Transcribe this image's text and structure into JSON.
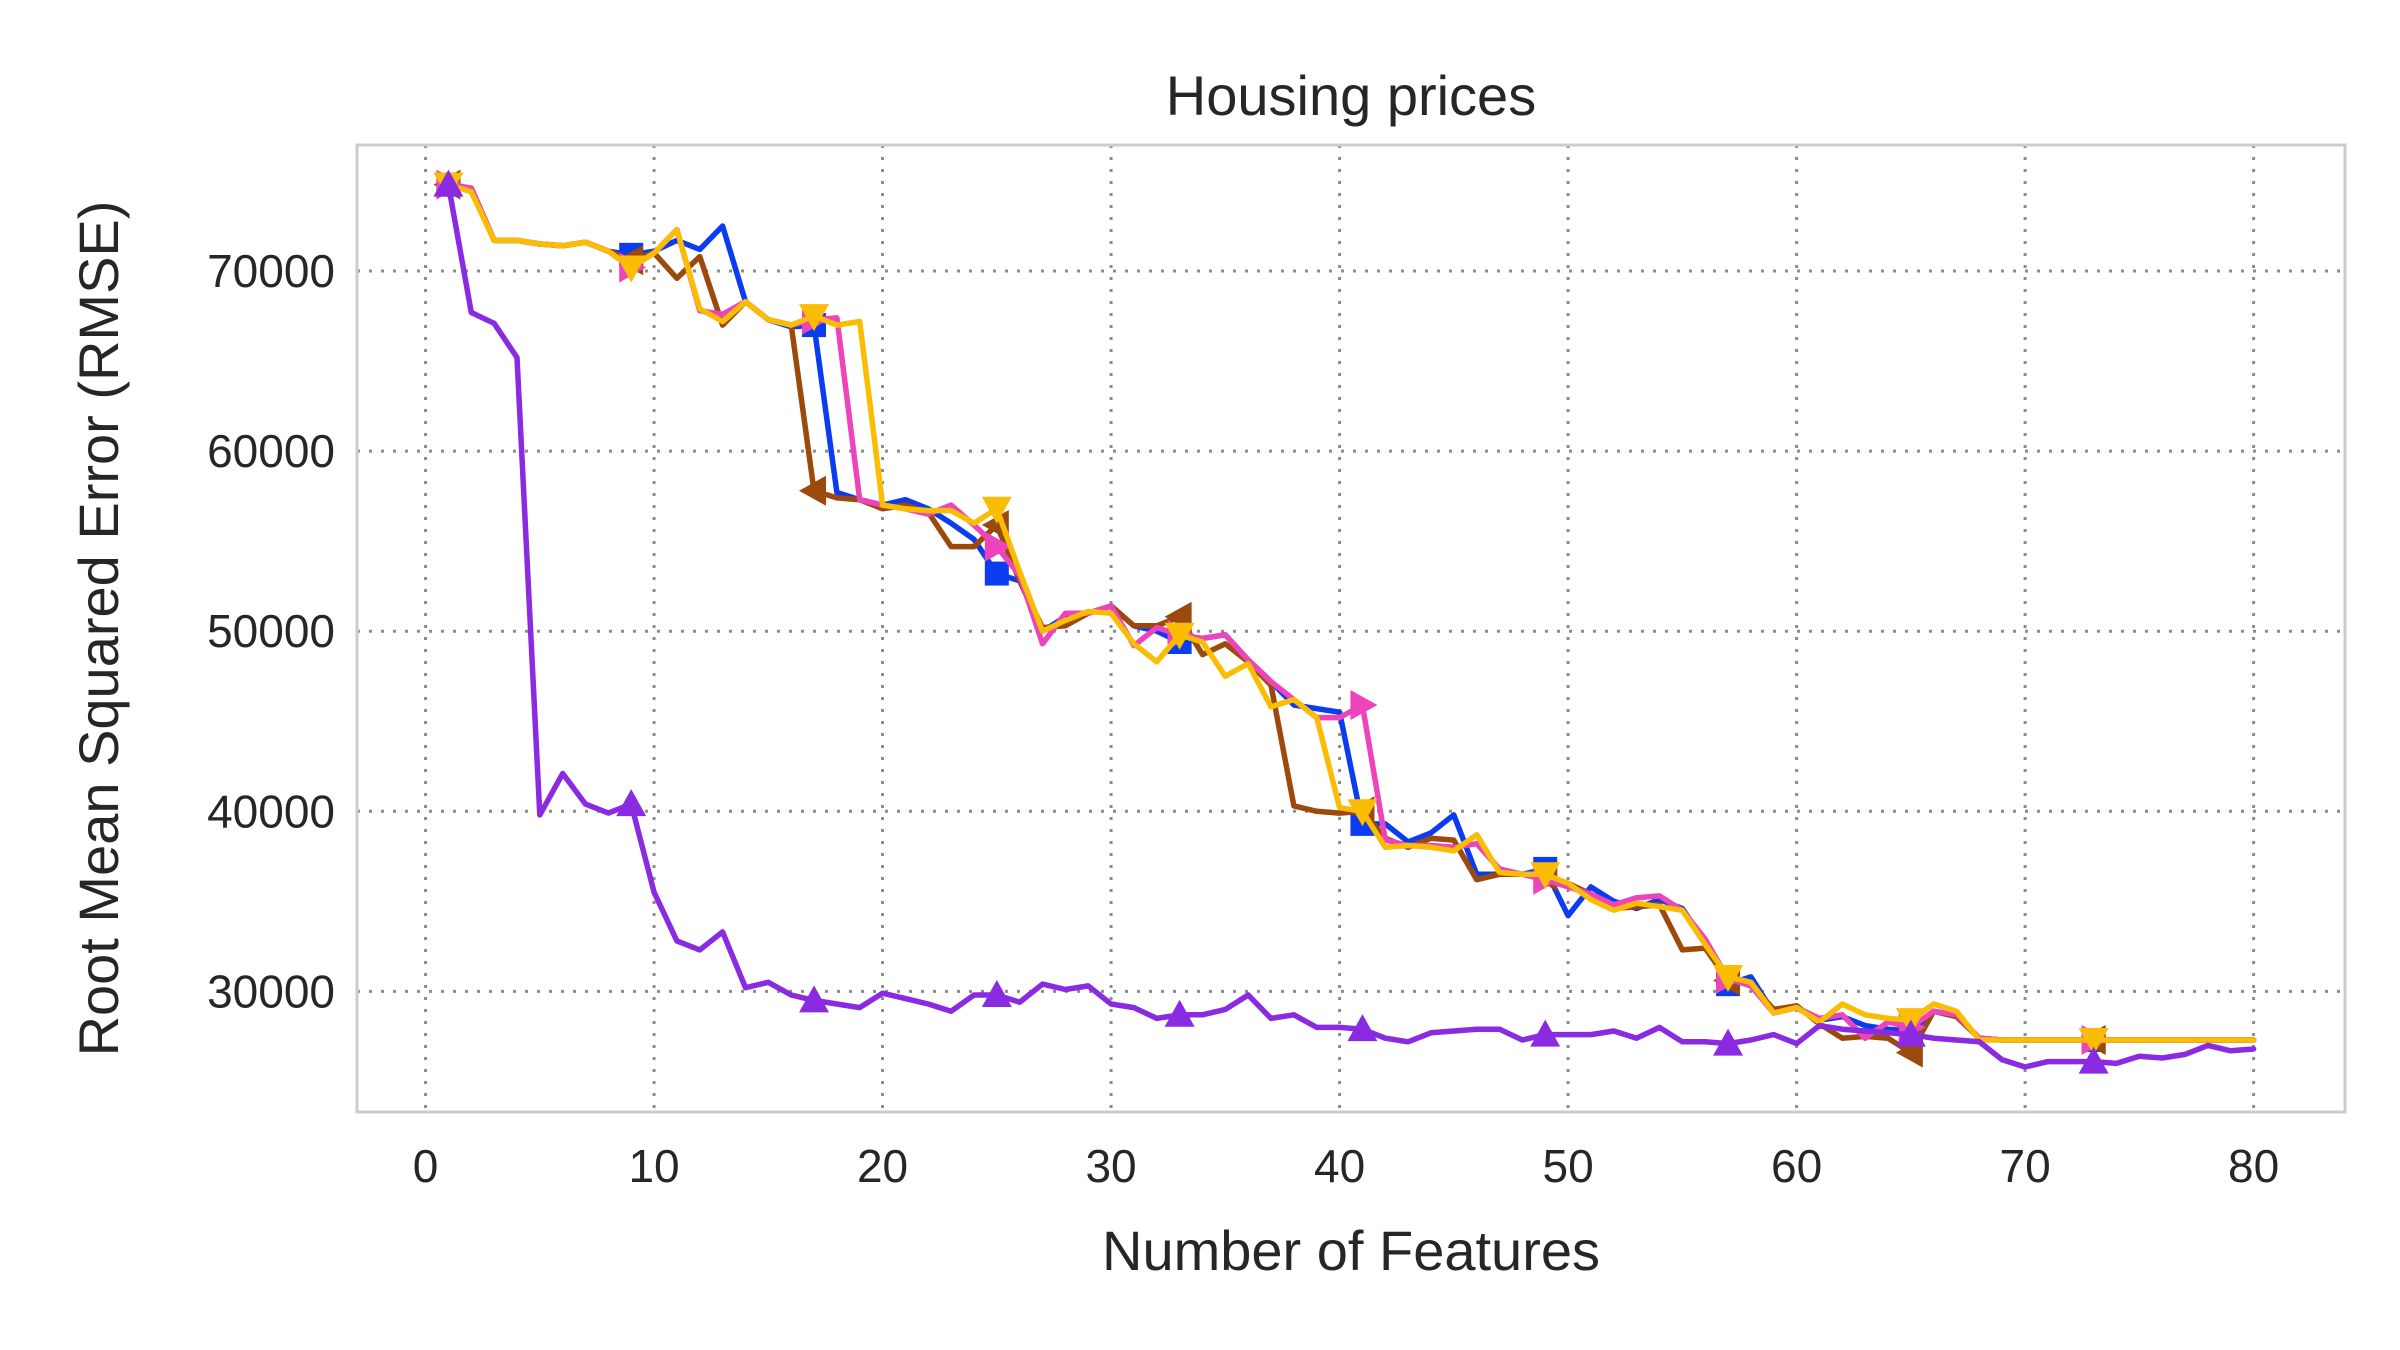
{
  "chart_data": {
    "type": "line",
    "title": "Housing prices",
    "xlabel": "Number of Features",
    "ylabel": "Root Mean Squared Error (RMSE)",
    "xlim": [
      -3,
      84
    ],
    "ylim": [
      23300,
      77000
    ],
    "xticks": [
      0,
      10,
      20,
      30,
      40,
      50,
      60,
      70,
      80
    ],
    "yticks": [
      30000,
      40000,
      50000,
      60000,
      70000
    ],
    "grid": true,
    "legend": "none",
    "series": [
      {
        "color": "#0b3cf0",
        "marker": "square",
        "x": [
          1,
          2,
          3,
          4,
          5,
          6,
          7,
          8,
          9,
          10,
          11,
          12,
          13,
          14,
          15,
          16,
          17,
          18,
          19,
          20,
          21,
          22,
          23,
          24,
          25,
          26,
          27,
          28,
          29,
          30,
          31,
          32,
          33,
          34,
          35,
          36,
          37,
          38,
          39,
          40,
          41,
          42,
          43,
          44,
          45,
          46,
          47,
          48,
          49,
          50,
          51,
          52,
          53,
          54,
          55,
          56,
          57,
          58,
          59,
          60,
          61,
          62,
          63,
          64,
          65,
          66,
          67,
          68,
          69,
          70,
          71,
          72,
          73,
          74,
          75,
          76,
          77,
          78,
          79,
          80
        ],
        "y": [
          74800,
          74600,
          71700,
          71700,
          71500,
          71400,
          71600,
          71100,
          70900,
          71100,
          71700,
          71200,
          72500,
          68300,
          67300,
          66900,
          67000,
          57700,
          57300,
          57000,
          57300,
          56800,
          56000,
          55100,
          53200,
          52800,
          50000,
          50800,
          51000,
          51400,
          50300,
          50000,
          49400,
          49600,
          49800,
          48400,
          47200,
          45900,
          45700,
          45500,
          39300,
          39300,
          38300,
          38800,
          39800,
          36500,
          36500,
          36500,
          36800,
          34200,
          35800,
          35000,
          34600,
          35100,
          34600,
          32700,
          30400,
          30800,
          28800,
          29100,
          28400,
          28600,
          28100,
          27900,
          27800,
          28900,
          28600,
          27400,
          27300,
          27300,
          27300,
          27300,
          27300,
          27300,
          27300,
          27300,
          27300,
          27300,
          27300,
          27300
        ],
        "marker_x": [
          1,
          9,
          17,
          25,
          33,
          41,
          49,
          57,
          65,
          73
        ]
      },
      {
        "color": "#9c4a0c",
        "marker": "triangle-left",
        "x": [
          1,
          2,
          3,
          4,
          5,
          6,
          7,
          8,
          9,
          10,
          11,
          12,
          13,
          14,
          15,
          16,
          17,
          18,
          19,
          20,
          21,
          22,
          23,
          24,
          25,
          26,
          27,
          28,
          29,
          30,
          31,
          32,
          33,
          34,
          35,
          36,
          37,
          38,
          39,
          40,
          41,
          42,
          43,
          44,
          45,
          46,
          47,
          48,
          49,
          50,
          51,
          52,
          53,
          54,
          55,
          56,
          57,
          58,
          59,
          60,
          61,
          62,
          63,
          64,
          65,
          66,
          67,
          68,
          69,
          70,
          71,
          72,
          73,
          74,
          75,
          76,
          77,
          78,
          79,
          80
        ],
        "y": [
          74800,
          74600,
          71700,
          71700,
          71500,
          71400,
          71600,
          71100,
          70600,
          71000,
          69600,
          70800,
          67000,
          68300,
          67300,
          67000,
          57800,
          57400,
          57300,
          56800,
          57000,
          56600,
          54700,
          54700,
          55900,
          52800,
          50200,
          50300,
          51000,
          51400,
          50300,
          50300,
          50800,
          48700,
          49300,
          48300,
          47000,
          40300,
          40000,
          39900,
          40000,
          38500,
          38000,
          38500,
          38400,
          36200,
          36500,
          36500,
          36400,
          36000,
          35400,
          34600,
          34700,
          34800,
          32300,
          32400,
          30600,
          30400,
          29000,
          29200,
          28200,
          27400,
          27500,
          27400,
          26600,
          28900,
          28600,
          27400,
          27300,
          27300,
          27300,
          27300,
          27300,
          27300,
          27300,
          27300,
          27300,
          27300,
          27300,
          27300
        ],
        "marker_x": [
          1,
          9,
          17,
          25,
          33,
          41,
          49,
          57,
          65,
          73
        ]
      },
      {
        "color": "#ee44bb",
        "marker": "triangle-right",
        "x": [
          1,
          2,
          3,
          4,
          5,
          6,
          7,
          8,
          9,
          10,
          11,
          12,
          13,
          14,
          15,
          16,
          17,
          18,
          19,
          20,
          21,
          22,
          23,
          24,
          25,
          26,
          27,
          28,
          29,
          30,
          31,
          32,
          33,
          34,
          35,
          36,
          37,
          38,
          39,
          40,
          41,
          42,
          43,
          44,
          45,
          46,
          47,
          48,
          49,
          50,
          51,
          52,
          53,
          54,
          55,
          56,
          57,
          58,
          59,
          60,
          61,
          62,
          63,
          64,
          65,
          66,
          67,
          68,
          69,
          70,
          71,
          72,
          73,
          74,
          75,
          76,
          77,
          78,
          79,
          80
        ],
        "y": [
          74800,
          74600,
          71700,
          71700,
          71500,
          71400,
          71600,
          71100,
          70200,
          71000,
          72300,
          67800,
          67600,
          68300,
          67300,
          67000,
          67300,
          67400,
          57300,
          57000,
          56800,
          56500,
          57000,
          55900,
          54700,
          53100,
          49300,
          51000,
          51000,
          51400,
          49200,
          50200,
          49800,
          49600,
          49800,
          48400,
          47200,
          46200,
          45200,
          45200,
          45900,
          38400,
          38100,
          38100,
          38000,
          38200,
          36800,
          36500,
          36200,
          35800,
          35400,
          34800,
          35200,
          35300,
          34500,
          32900,
          30700,
          30300,
          28800,
          29100,
          28500,
          28700,
          27400,
          28300,
          28000,
          28900,
          28700,
          27400,
          27300,
          27300,
          27300,
          27300,
          27300,
          27300,
          27300,
          27300,
          27300,
          27300,
          27300,
          27300
        ],
        "marker_x": [
          1,
          9,
          17,
          25,
          33,
          41,
          49,
          57,
          65,
          73
        ]
      },
      {
        "color": "#fbbc04",
        "marker": "triangle-down",
        "x": [
          1,
          2,
          3,
          4,
          5,
          6,
          7,
          8,
          9,
          10,
          11,
          12,
          13,
          14,
          15,
          16,
          17,
          18,
          19,
          20,
          21,
          22,
          23,
          24,
          25,
          26,
          27,
          28,
          29,
          30,
          31,
          32,
          33,
          34,
          35,
          36,
          37,
          38,
          39,
          40,
          41,
          42,
          43,
          44,
          45,
          46,
          47,
          48,
          49,
          50,
          51,
          52,
          53,
          54,
          55,
          56,
          57,
          58,
          59,
          60,
          61,
          62,
          63,
          64,
          65,
          66,
          67,
          68,
          69,
          70,
          71,
          72,
          73,
          74,
          75,
          76,
          77,
          78,
          79,
          80
        ],
        "y": [
          74800,
          74400,
          71700,
          71700,
          71500,
          71400,
          71600,
          71100,
          70200,
          71000,
          72300,
          67900,
          67200,
          68300,
          67300,
          67000,
          67500,
          67000,
          67200,
          57000,
          56800,
          56700,
          56700,
          56000,
          56800,
          53300,
          50000,
          50600,
          51100,
          51000,
          49300,
          48300,
          49800,
          49400,
          47500,
          48200,
          45800,
          46200,
          45200,
          40200,
          40000,
          38000,
          38100,
          38000,
          37800,
          38700,
          36600,
          36500,
          36500,
          36000,
          35100,
          34500,
          34900,
          34700,
          34500,
          32600,
          30800,
          30500,
          28800,
          29100,
          28300,
          29300,
          28700,
          28500,
          28400,
          29300,
          28900,
          27300,
          27300,
          27300,
          27300,
          27300,
          27300,
          27300,
          27300,
          27300,
          27300,
          27300,
          27300,
          27300
        ],
        "marker_x": [
          1,
          9,
          17,
          25,
          33,
          41,
          49,
          57,
          65,
          73
        ]
      },
      {
        "color": "#8a2be2",
        "marker": "triangle-up",
        "x": [
          1,
          2,
          3,
          4,
          5,
          6,
          7,
          8,
          9,
          10,
          11,
          12,
          13,
          14,
          15,
          16,
          17,
          18,
          19,
          20,
          21,
          22,
          23,
          24,
          25,
          26,
          27,
          28,
          29,
          30,
          31,
          32,
          33,
          34,
          35,
          36,
          37,
          38,
          39,
          40,
          41,
          42,
          43,
          44,
          45,
          46,
          47,
          48,
          49,
          50,
          51,
          52,
          53,
          54,
          55,
          56,
          57,
          58,
          59,
          60,
          61,
          62,
          63,
          64,
          65,
          66,
          67,
          68,
          69,
          70,
          71,
          72,
          73,
          74,
          75,
          76,
          77,
          78,
          79,
          80
        ],
        "y": [
          74800,
          67700,
          67100,
          65200,
          39800,
          42100,
          40400,
          39900,
          40400,
          35500,
          32800,
          32300,
          33300,
          30200,
          30500,
          29800,
          29500,
          29300,
          29100,
          29900,
          29600,
          29300,
          28900,
          29800,
          29800,
          29400,
          30400,
          30100,
          30300,
          29300,
          29100,
          28500,
          28700,
          28700,
          29000,
          29800,
          28500,
          28700,
          28000,
          28000,
          27900,
          27400,
          27200,
          27700,
          27800,
          27900,
          27900,
          27300,
          27600,
          27600,
          27600,
          27800,
          27400,
          28000,
          27200,
          27200,
          27100,
          27300,
          27600,
          27100,
          28100,
          27900,
          27800,
          27700,
          27600,
          27400,
          27300,
          27200,
          26200,
          25800,
          26100,
          26100,
          26100,
          26000,
          26400,
          26300,
          26500,
          27000,
          26700,
          26800
        ],
        "marker_x": [
          1,
          9,
          17,
          25,
          33,
          41,
          49,
          57,
          65,
          73
        ]
      }
    ]
  }
}
